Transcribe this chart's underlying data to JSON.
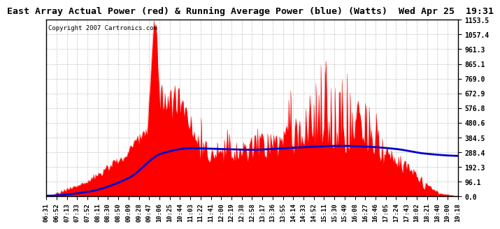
{
  "title": "East Array Actual Power (red) & Running Average Power (blue) (Watts)  Wed Apr 25  19:31",
  "copyright": "Copyright 2007 Cartronics.com",
  "yticks": [
    0.0,
    96.1,
    192.3,
    288.4,
    384.5,
    480.6,
    576.8,
    672.9,
    769.0,
    865.1,
    961.3,
    1057.4,
    1153.5
  ],
  "ymax": 1153.5,
  "ymin": 0.0,
  "bg_color": "#ffffff",
  "grid_color": "#aaaaaa",
  "actual_color": "#ff0000",
  "average_color": "#0000cc",
  "x_labels": [
    "06:31",
    "06:52",
    "07:13",
    "07:33",
    "07:52",
    "08:11",
    "08:30",
    "08:50",
    "09:09",
    "09:28",
    "09:47",
    "10:06",
    "10:25",
    "10:44",
    "11:03",
    "11:22",
    "11:41",
    "12:00",
    "12:19",
    "12:38",
    "12:58",
    "13:17",
    "13:36",
    "13:55",
    "14:14",
    "14:33",
    "14:52",
    "15:11",
    "15:30",
    "15:49",
    "16:08",
    "16:27",
    "16:46",
    "17:05",
    "17:24",
    "17:43",
    "18:02",
    "18:21",
    "18:40",
    "19:00",
    "19:18"
  ],
  "title_fontsize": 9.5,
  "tick_fontsize": 7.0,
  "xtick_fontsize": 6.5
}
